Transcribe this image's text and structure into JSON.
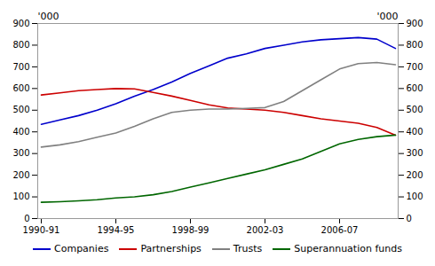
{
  "chart_data": {
    "type": "line",
    "categories": [
      "1990-91",
      null,
      null,
      null,
      "1994-95",
      null,
      null,
      null,
      "1998-99",
      null,
      null,
      null,
      "2002-03",
      null,
      null,
      null,
      "2006-07",
      null,
      null,
      null
    ],
    "series": [
      {
        "name": "Companies",
        "color": "#0000cc",
        "values": [
          435,
          455,
          475,
          500,
          530,
          565,
          595,
          630,
          670,
          705,
          740,
          760,
          785,
          800,
          815,
          825,
          830,
          835,
          828,
          785
        ]
      },
      {
        "name": "Partnerships",
        "color": "#cc0000",
        "values": [
          570,
          580,
          590,
          595,
          600,
          598,
          582,
          565,
          545,
          525,
          510,
          505,
          500,
          490,
          475,
          460,
          450,
          440,
          420,
          385
        ]
      },
      {
        "name": "Trusts",
        "color": "#808080",
        "values": [
          330,
          340,
          355,
          375,
          395,
          425,
          460,
          490,
          500,
          505,
          505,
          508,
          512,
          540,
          590,
          640,
          690,
          715,
          720,
          710
        ]
      },
      {
        "name": "Superannuation funds",
        "color": "#006600",
        "values": [
          75,
          78,
          82,
          87,
          95,
          100,
          110,
          125,
          145,
          165,
          185,
          205,
          225,
          250,
          275,
          310,
          345,
          365,
          378,
          385
        ]
      }
    ],
    "ylim": [
      0,
      900
    ],
    "yticks": [
      0,
      100,
      200,
      300,
      400,
      500,
      600,
      700,
      800,
      900
    ],
    "y2lim": [
      0,
      900
    ],
    "y2ticks": [
      0,
      100,
      200,
      300,
      400,
      500,
      600,
      700,
      800,
      900
    ],
    "y_label": "'000",
    "y2_label": "'000",
    "legend": "bottom",
    "grid": false
  }
}
